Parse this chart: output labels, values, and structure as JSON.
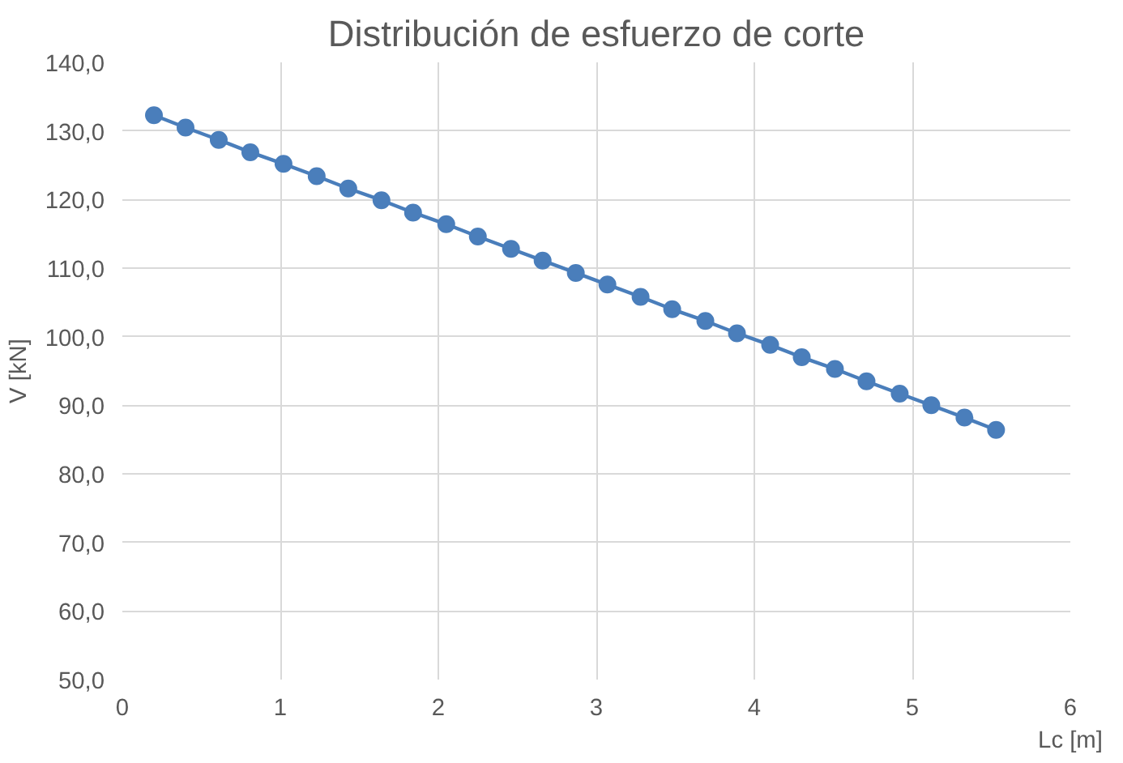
{
  "chart_data": {
    "type": "line",
    "title": "Distribución de esfuerzo de corte",
    "xlabel": "Lc [m]",
    "ylabel": "V [kN]",
    "x": [
      0.2,
      0.4,
      0.61,
      0.81,
      1.02,
      1.23,
      1.43,
      1.64,
      1.84,
      2.05,
      2.25,
      2.46,
      2.66,
      2.87,
      3.07,
      3.28,
      3.48,
      3.69,
      3.89,
      4.1,
      4.3,
      4.51,
      4.71,
      4.92,
      5.12,
      5.33,
      5.53
    ],
    "series": [
      {
        "color": "#4a7ebb",
        "values": [
          132.3,
          130.5,
          128.7,
          126.9,
          125.2,
          123.4,
          121.6,
          119.9,
          118.1,
          116.4,
          114.6,
          112.8,
          111.1,
          109.3,
          107.6,
          105.8,
          104.0,
          102.3,
          100.5,
          98.8,
          97.0,
          95.3,
          93.5,
          91.7,
          90.0,
          88.2,
          86.4
        ]
      }
    ],
    "xlim": [
      0,
      6
    ],
    "xticks": [
      0,
      1,
      2,
      3,
      4,
      5,
      6
    ],
    "ylim": [
      50,
      140
    ],
    "yticks": [
      {
        "value": 50,
        "label": "50,0"
      },
      {
        "value": 60,
        "label": "60,0"
      },
      {
        "value": 70,
        "label": "70,0"
      },
      {
        "value": 80,
        "label": "80,0"
      },
      {
        "value": 90,
        "label": "90,0"
      },
      {
        "value": 100,
        "label": "100,0"
      },
      {
        "value": 110,
        "label": "110,0"
      },
      {
        "value": 120,
        "label": "120,0"
      },
      {
        "value": 130,
        "label": "130,0"
      },
      {
        "value": 140,
        "label": "140,0"
      }
    ],
    "grid": true,
    "marker": "circle",
    "line_style": "solid"
  }
}
